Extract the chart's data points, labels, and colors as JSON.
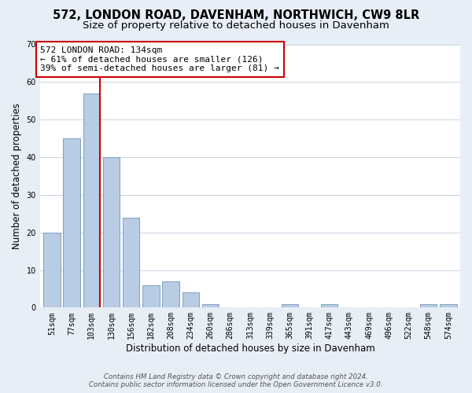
{
  "title1": "572, LONDON ROAD, DAVENHAM, NORTHWICH, CW9 8LR",
  "title2": "Size of property relative to detached houses in Davenham",
  "xlabel": "Distribution of detached houses by size in Davenham",
  "ylabel": "Number of detached properties",
  "bar_labels": [
    "51sqm",
    "77sqm",
    "103sqm",
    "130sqm",
    "156sqm",
    "182sqm",
    "208sqm",
    "234sqm",
    "260sqm",
    "286sqm",
    "313sqm",
    "339sqm",
    "365sqm",
    "391sqm",
    "417sqm",
    "443sqm",
    "469sqm",
    "496sqm",
    "522sqm",
    "548sqm",
    "574sqm"
  ],
  "bar_values": [
    20,
    45,
    57,
    40,
    24,
    6,
    7,
    4,
    1,
    0,
    0,
    0,
    1,
    0,
    1,
    0,
    0,
    0,
    0,
    1,
    1
  ],
  "bar_color": "#b8cce4",
  "bar_edge_color": "#7f9fbf",
  "vline_color": "#cc0000",
  "annotation_text": "572 LONDON ROAD: 134sqm\n← 61% of detached houses are smaller (126)\n39% of semi-detached houses are larger (81) →",
  "annotation_box_edgecolor": "#cc0000",
  "annotation_box_facecolor": "#ffffff",
  "ylim": [
    0,
    70
  ],
  "yticks": [
    0,
    10,
    20,
    30,
    40,
    50,
    60,
    70
  ],
  "footer1": "Contains HM Land Registry data © Crown copyright and database right 2024.",
  "footer2": "Contains public sector information licensed under the Open Government Licence v3.0.",
  "bg_color": "#e8eef5",
  "plot_bg_color": "#ffffff",
  "grid_color": "#c8d4e0",
  "title_fontsize": 10.5,
  "subtitle_fontsize": 9.5,
  "tick_fontsize": 7,
  "axis_label_fontsize": 8.5,
  "annot_fontsize": 8
}
